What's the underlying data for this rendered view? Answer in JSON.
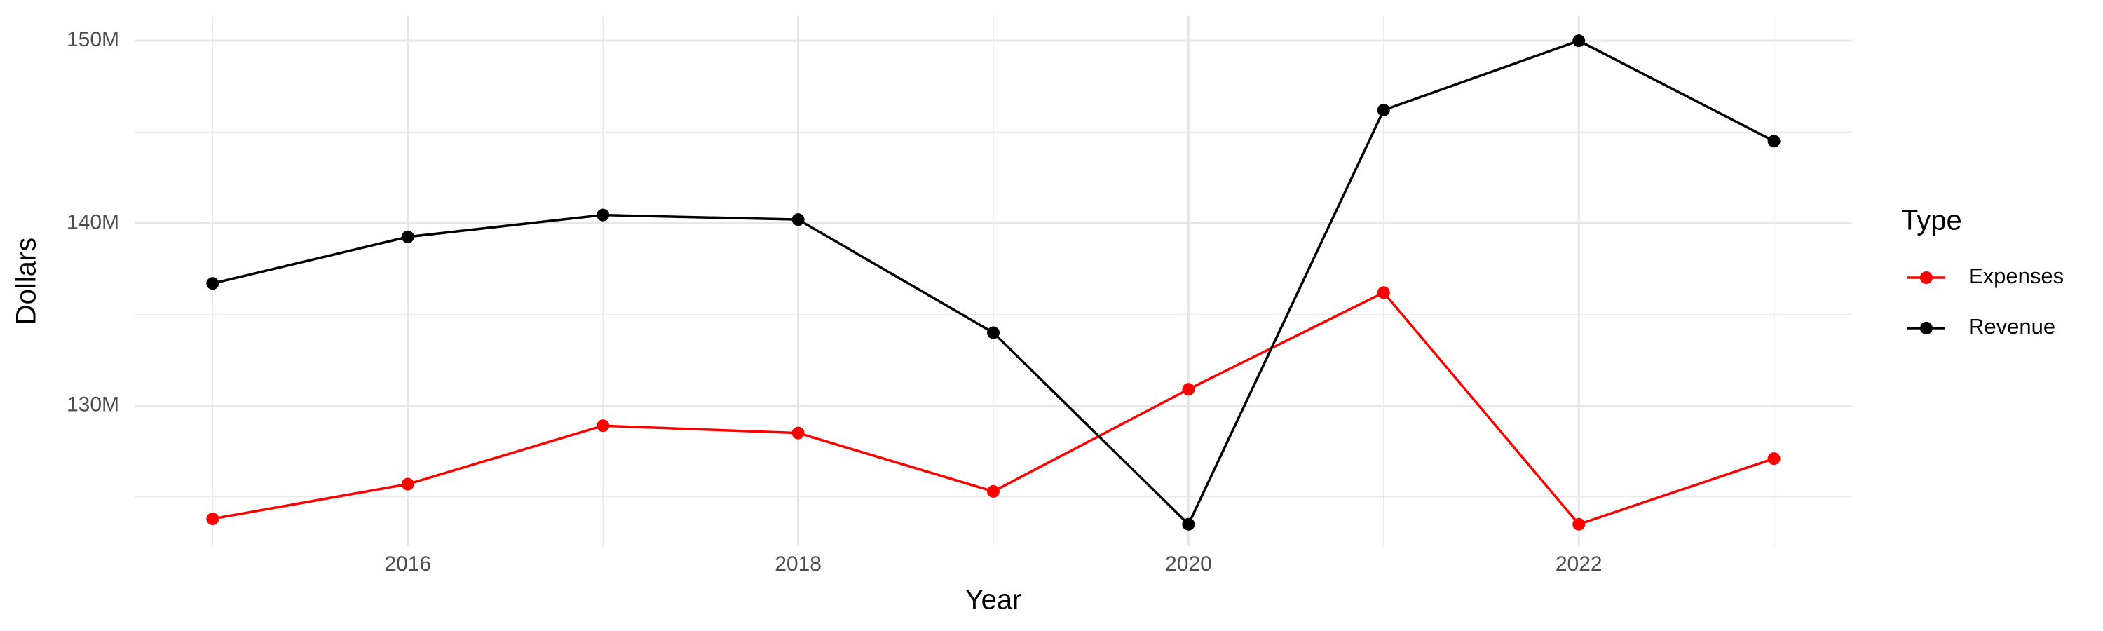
{
  "chart_data": {
    "type": "line",
    "x_label": "Year",
    "y_label": "Dollars",
    "legend_title": "Type",
    "legend_position": "right",
    "grid": true,
    "x": [
      2015,
      2016,
      2017,
      2018,
      2019,
      2020,
      2021,
      2022,
      2023
    ],
    "series": [
      {
        "name": "Expenses",
        "color": "#ff0000",
        "values": [
          123800000,
          125700000,
          128900000,
          128500000,
          125300000,
          130900000,
          136200000,
          123500000,
          127100000
        ]
      },
      {
        "name": "Revenue",
        "color": "#000000",
        "values": [
          136700000,
          139250000,
          140450000,
          140200000,
          134000000,
          123500000,
          146200000,
          150000000,
          144500000
        ]
      }
    ],
    "xlim": [
      2014.6,
      2023.4
    ],
    "xticks": [
      2016,
      2018,
      2020,
      2022
    ],
    "ylim": [
      122300000,
      151350000
    ],
    "yticks": [
      {
        "value": 130000000,
        "label": "130M"
      },
      {
        "value": 140000000,
        "label": "140M"
      },
      {
        "value": 150000000,
        "label": "150M"
      }
    ]
  }
}
